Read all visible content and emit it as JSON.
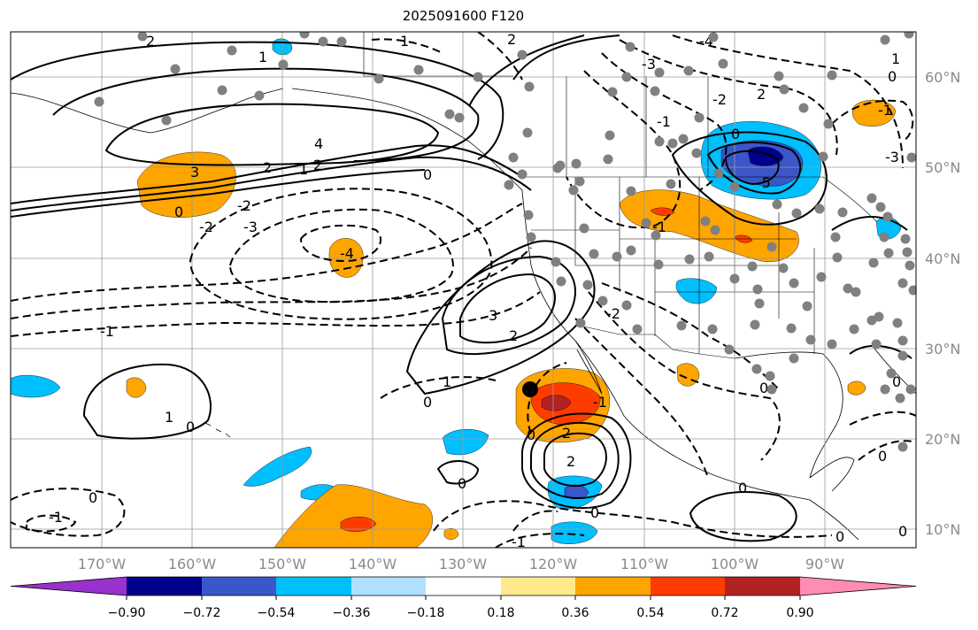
{
  "title": "2025091600 F120",
  "map": {
    "lon_labels": [
      "170°W",
      "160°W",
      "150°W",
      "140°W",
      "130°W",
      "120°W",
      "110°W",
      "100°W",
      "90°W"
    ],
    "lat_labels": [
      "60°N",
      "50°N",
      "40°N",
      "30°N",
      "20°N",
      "10°N"
    ],
    "contour_labels": [
      "1",
      "2",
      "3",
      "4",
      "0",
      "-1",
      "-2",
      "-3",
      "-4",
      "-5"
    ],
    "stations_color": "#808080",
    "storm_marker_color": "#000000"
  },
  "colorbar": {
    "ticks": [
      "−0.90",
      "−0.72",
      "−0.54",
      "−0.36",
      "−0.18",
      "0.18",
      "0.36",
      "0.54",
      "0.72",
      "0.90"
    ],
    "colors": [
      "#9932cc",
      "#00008b",
      "#3a56c8",
      "#00bfff",
      "#b0e0ff",
      "#ffffff",
      "#ffe98a",
      "#ffa500",
      "#ff3c00",
      "#b22222",
      "#ff8cb4"
    ]
  }
}
